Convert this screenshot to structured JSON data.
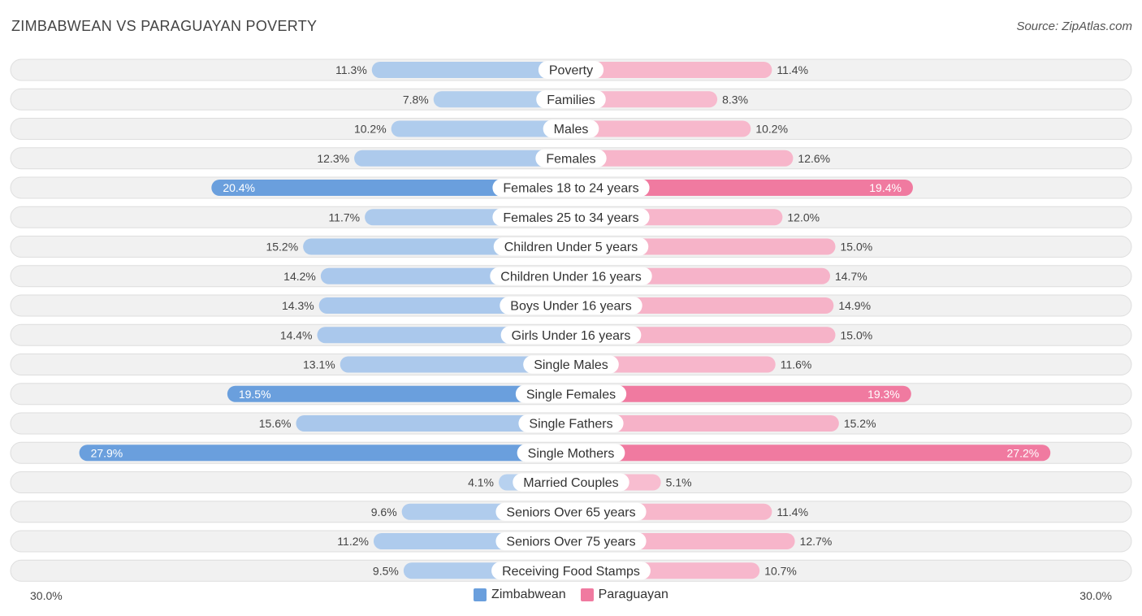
{
  "title": "ZIMBABWEAN VS PARAGUAYAN POVERTY",
  "source": "Source: ZipAtlas.com",
  "chart_data": {
    "type": "bar",
    "orientation": "horizontal-diverging",
    "categories": [
      "Poverty",
      "Families",
      "Males",
      "Females",
      "Females 18 to 24 years",
      "Females 25 to 34 years",
      "Children Under 5 years",
      "Children Under 16 years",
      "Boys Under 16 years",
      "Girls Under 16 years",
      "Single Males",
      "Single Females",
      "Single Fathers",
      "Single Mothers",
      "Married Couples",
      "Seniors Over 65 years",
      "Seniors Over 75 years",
      "Receiving Food Stamps"
    ],
    "series": [
      {
        "name": "Zimbabwean",
        "color": "#6a9fdd",
        "values": [
          11.3,
          7.8,
          10.2,
          12.3,
          20.4,
          11.7,
          15.2,
          14.2,
          14.3,
          14.4,
          13.1,
          19.5,
          15.6,
          27.9,
          4.1,
          9.6,
          11.2,
          9.5
        ],
        "labels": [
          "11.3%",
          "7.8%",
          "10.2%",
          "12.3%",
          "20.4%",
          "11.7%",
          "15.2%",
          "14.2%",
          "14.3%",
          "14.4%",
          "13.1%",
          "19.5%",
          "15.6%",
          "27.9%",
          "4.1%",
          "9.6%",
          "11.2%",
          "9.5%"
        ]
      },
      {
        "name": "Paraguayan",
        "color": "#f07aa0",
        "values": [
          11.4,
          8.3,
          10.2,
          12.6,
          19.4,
          12.0,
          15.0,
          14.7,
          14.9,
          15.0,
          11.6,
          19.3,
          15.2,
          27.2,
          5.1,
          11.4,
          12.7,
          10.7
        ],
        "labels": [
          "11.4%",
          "8.3%",
          "10.2%",
          "12.6%",
          "19.4%",
          "12.0%",
          "15.0%",
          "14.7%",
          "14.9%",
          "15.0%",
          "11.6%",
          "19.3%",
          "15.2%",
          "27.2%",
          "5.1%",
          "11.4%",
          "12.7%",
          "10.7%"
        ]
      }
    ],
    "xlim": [
      -30,
      30
    ],
    "axis_min_label": "30.0%",
    "axis_max_label": "30.0%",
    "legend": [
      "Zimbabwean",
      "Paraguayan"
    ],
    "legend_position": "bottom-center"
  }
}
